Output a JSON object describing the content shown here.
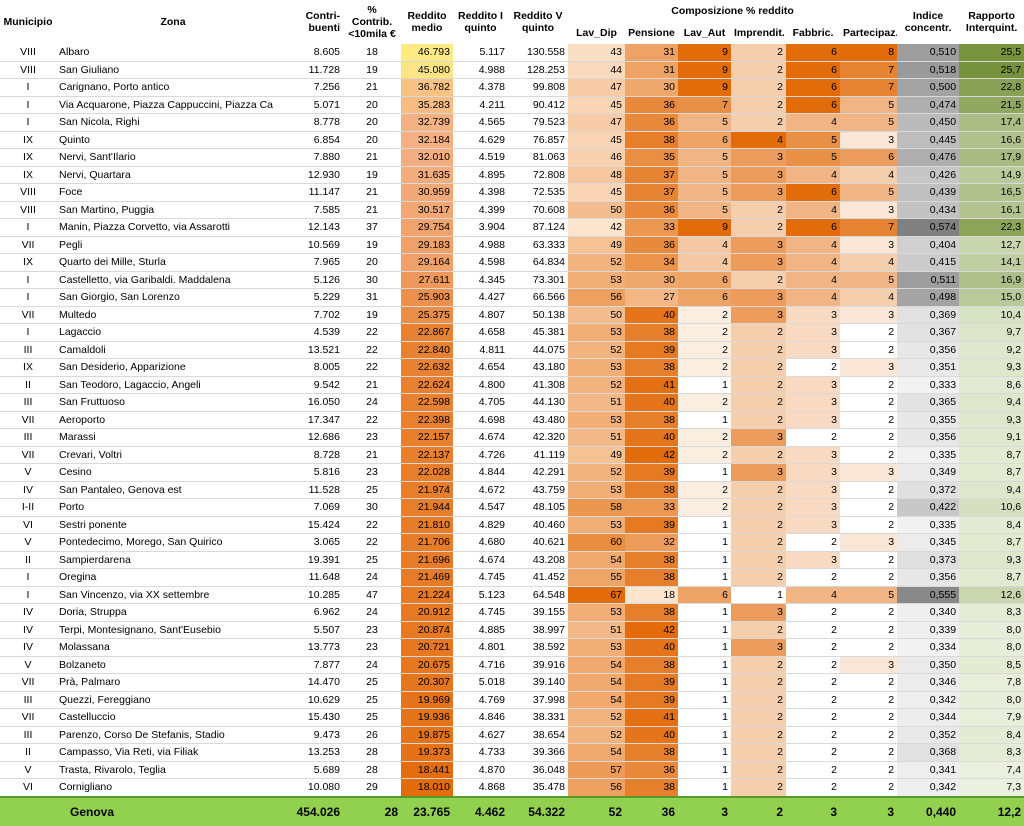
{
  "headers": {
    "municipio": "Municipio",
    "zona": "Zona",
    "contribuenti": "Contri-\nbuenti",
    "contrib10": "% Contrib.\n<10mila €",
    "reddito_medio": "Reddito\nmedio",
    "reddito_I": "Reddito I\nquinto",
    "reddito_V": "Reddito V\nquinto",
    "composizione": "Composizione % reddito",
    "lav_dip": "Lav_Dip",
    "pensione": "Pensione",
    "lav_aut": "Lav_Aut",
    "imprendit": "Imprendit.",
    "fabbric": "Fabbric.",
    "partecipaz": "Partecipaz.",
    "indice": "Indice\nconcentr.",
    "rapporto": "Rapporto\nInterquint."
  },
  "rows": [
    [
      "VIII",
      "Albaro",
      "8.605",
      "18",
      "46.793",
      "5.117",
      "130.558",
      "43",
      "31",
      "9",
      "2",
      "6",
      "8",
      "0,510",
      "25,5"
    ],
    [
      "VIII",
      "San Giuliano",
      "11.728",
      "19",
      "45.080",
      "4.988",
      "128.253",
      "44",
      "31",
      "9",
      "2",
      "6",
      "7",
      "0,518",
      "25,7"
    ],
    [
      "I",
      "Carignano, Porto antico",
      "7.256",
      "21",
      "36.782",
      "4.378",
      "99.808",
      "47",
      "30",
      "9",
      "2",
      "6",
      "7",
      "0,500",
      "22,8"
    ],
    [
      "I",
      "Via Acquarone, Piazza Cappuccini, Piazza Ca",
      "5.071",
      "20",
      "35.283",
      "4.211",
      "90.412",
      "45",
      "36",
      "7",
      "2",
      "6",
      "5",
      "0,474",
      "21,5"
    ],
    [
      "I",
      "San Nicola, Righi",
      "8.778",
      "20",
      "32.739",
      "4.565",
      "79.523",
      "47",
      "36",
      "5",
      "2",
      "4",
      "5",
      "0,450",
      "17,4"
    ],
    [
      "IX",
      "Quinto",
      "6.854",
      "20",
      "32.184",
      "4.629",
      "76.857",
      "45",
      "38",
      "6",
      "4",
      "5",
      "3",
      "0,445",
      "16,6"
    ],
    [
      "IX",
      "Nervi, Sant'Ilario",
      "7.880",
      "21",
      "32.010",
      "4.519",
      "81.063",
      "46",
      "35",
      "5",
      "3",
      "5",
      "6",
      "0,476",
      "17,9"
    ],
    [
      "IX",
      "Nervi, Quartara",
      "12.930",
      "19",
      "31.635",
      "4.895",
      "72.808",
      "48",
      "37",
      "5",
      "3",
      "4",
      "4",
      "0,426",
      "14,9"
    ],
    [
      "VIII",
      "Foce",
      "11.147",
      "21",
      "30.959",
      "4.398",
      "72.535",
      "45",
      "37",
      "5",
      "3",
      "6",
      "5",
      "0,439",
      "16,5"
    ],
    [
      "VIII",
      "San Martino, Puggia",
      "7.585",
      "21",
      "30.517",
      "4.399",
      "70.608",
      "50",
      "36",
      "5",
      "2",
      "4",
      "3",
      "0,434",
      "16,1"
    ],
    [
      "I",
      "Manin, Piazza Corvetto, via Assarotti",
      "12.143",
      "37",
      "29.754",
      "3.904",
      "87.124",
      "42",
      "33",
      "9",
      "2",
      "6",
      "7",
      "0,574",
      "22,3"
    ],
    [
      "VII",
      "Pegli",
      "10.569",
      "19",
      "29.183",
      "4.988",
      "63.333",
      "49",
      "36",
      "4",
      "3",
      "4",
      "3",
      "0,404",
      "12,7"
    ],
    [
      "IX",
      "Quarto dei Mille, Sturla",
      "7.965",
      "20",
      "29.164",
      "4.598",
      "64.834",
      "52",
      "34",
      "4",
      "3",
      "4",
      "4",
      "0,415",
      "14,1"
    ],
    [
      "I",
      "Castelletto, via Garibaldi. Maddalena",
      "5.126",
      "30",
      "27.611",
      "4.345",
      "73.301",
      "53",
      "30",
      "6",
      "2",
      "4",
      "5",
      "0,511",
      "16,9"
    ],
    [
      "I",
      "San Giorgio, San Lorenzo",
      "5.229",
      "31",
      "25.903",
      "4.427",
      "66.566",
      "56",
      "27",
      "6",
      "3",
      "4",
      "4",
      "0,498",
      "15,0"
    ],
    [
      "VII",
      "Multedo",
      "7.702",
      "19",
      "25.375",
      "4.807",
      "50.138",
      "50",
      "40",
      "2",
      "3",
      "3",
      "3",
      "0,369",
      "10,4"
    ],
    [
      "I",
      "Lagaccio",
      "4.539",
      "22",
      "22.867",
      "4.658",
      "45.381",
      "53",
      "38",
      "2",
      "2",
      "3",
      "2",
      "0,367",
      "9,7"
    ],
    [
      "III",
      "Camaldoli",
      "13.521",
      "22",
      "22.840",
      "4.811",
      "44.075",
      "52",
      "39",
      "2",
      "2",
      "3",
      "2",
      "0,356",
      "9,2"
    ],
    [
      "IX",
      "San Desiderio, Apparizione",
      "8.005",
      "22",
      "22.632",
      "4.654",
      "43.180",
      "53",
      "38",
      "2",
      "2",
      "2",
      "3",
      "0,351",
      "9,3"
    ],
    [
      "II",
      "San Teodoro, Lagaccio, Angeli",
      "9.542",
      "21",
      "22.624",
      "4.800",
      "41.308",
      "52",
      "41",
      "1",
      "2",
      "3",
      "2",
      "0,333",
      "8,6"
    ],
    [
      "III",
      "San Fruttuoso",
      "16.050",
      "24",
      "22.598",
      "4.705",
      "44.130",
      "51",
      "40",
      "2",
      "2",
      "3",
      "2",
      "0,365",
      "9,4"
    ],
    [
      "VII",
      "Aeroporto",
      "17.347",
      "22",
      "22.398",
      "4.698",
      "43.480",
      "53",
      "38",
      "1",
      "2",
      "3",
      "2",
      "0,355",
      "9,3"
    ],
    [
      "III",
      "Marassi",
      "12.686",
      "23",
      "22.157",
      "4.674",
      "42.320",
      "51",
      "40",
      "2",
      "3",
      "2",
      "2",
      "0,356",
      "9,1"
    ],
    [
      "VII",
      "Crevari, Voltri",
      "8.728",
      "21",
      "22.137",
      "4.726",
      "41.119",
      "49",
      "42",
      "2",
      "2",
      "3",
      "2",
      "0,335",
      "8,7"
    ],
    [
      "V",
      "Cesino",
      "5.816",
      "23",
      "22.028",
      "4.844",
      "42.291",
      "52",
      "39",
      "1",
      "3",
      "3",
      "3",
      "0,349",
      "8,7"
    ],
    [
      "IV",
      "San Pantaleo, Genova est",
      "11.528",
      "25",
      "21.974",
      "4.672",
      "43.759",
      "53",
      "38",
      "2",
      "2",
      "3",
      "2",
      "0,372",
      "9,4"
    ],
    [
      "I-II",
      "Porto",
      "7.069",
      "30",
      "21.944",
      "4.547",
      "48.105",
      "58",
      "33",
      "2",
      "2",
      "3",
      "2",
      "0,422",
      "10,6"
    ],
    [
      "VI",
      "Sestri ponente",
      "15.424",
      "22",
      "21.810",
      "4.829",
      "40.460",
      "53",
      "39",
      "1",
      "2",
      "3",
      "2",
      "0,335",
      "8,4"
    ],
    [
      "V",
      "Pontedecimo, Morego, San Quirico",
      "3.065",
      "22",
      "21.706",
      "4.680",
      "40.621",
      "60",
      "32",
      "1",
      "2",
      "2",
      "3",
      "0,345",
      "8,7"
    ],
    [
      "II",
      "Sampierdarena",
      "19.391",
      "25",
      "21.696",
      "4.674",
      "43.208",
      "54",
      "38",
      "1",
      "2",
      "3",
      "2",
      "0,373",
      "9,3"
    ],
    [
      "I",
      "Oregina",
      "11.648",
      "24",
      "21.469",
      "4.745",
      "41.452",
      "55",
      "38",
      "1",
      "2",
      "2",
      "2",
      "0,356",
      "8,7"
    ],
    [
      "I",
      "San Vincenzo, via XX settembre",
      "10.285",
      "47",
      "21.224",
      "5.123",
      "64.548",
      "67",
      "18",
      "6",
      "1",
      "4",
      "5",
      "0,555",
      "12,6"
    ],
    [
      "IV",
      "Doria, Struppa",
      "6.962",
      "24",
      "20.912",
      "4.745",
      "39.155",
      "53",
      "38",
      "1",
      "3",
      "2",
      "2",
      "0,340",
      "8,3"
    ],
    [
      "IV",
      "Terpi, Montesignano, Sant'Eusebio",
      "5.507",
      "23",
      "20.874",
      "4.885",
      "38.997",
      "51",
      "42",
      "1",
      "2",
      "2",
      "2",
      "0,339",
      "8,0"
    ],
    [
      "IV",
      "Molassana",
      "13.773",
      "23",
      "20.721",
      "4.801",
      "38.592",
      "53",
      "40",
      "1",
      "3",
      "2",
      "2",
      "0,334",
      "8,0"
    ],
    [
      "V",
      "Bolzaneto",
      "7.877",
      "24",
      "20.675",
      "4.716",
      "39.916",
      "54",
      "38",
      "1",
      "2",
      "2",
      "3",
      "0,350",
      "8,5"
    ],
    [
      "VII",
      "Prà, Palmaro",
      "14.470",
      "25",
      "20.307",
      "5.018",
      "39.140",
      "54",
      "39",
      "1",
      "2",
      "2",
      "2",
      "0,346",
      "7,8"
    ],
    [
      "III",
      "Quezzi, Fereggiano",
      "10.629",
      "25",
      "19.969",
      "4.769",
      "37.998",
      "54",
      "39",
      "1",
      "2",
      "2",
      "2",
      "0,342",
      "8,0"
    ],
    [
      "VII",
      "Castelluccio",
      "15.430",
      "25",
      "19.936",
      "4.846",
      "38.331",
      "52",
      "41",
      "1",
      "2",
      "2",
      "2",
      "0,344",
      "7,9"
    ],
    [
      "III",
      "Parenzo, Corso De Stefanis, Stadio",
      "9.473",
      "26",
      "19.875",
      "4.627",
      "38.654",
      "52",
      "40",
      "1",
      "2",
      "2",
      "2",
      "0,352",
      "8,4"
    ],
    [
      "II",
      "Campasso, Via Reti, via Filiak",
      "13.253",
      "28",
      "19.373",
      "4.733",
      "39.366",
      "54",
      "38",
      "1",
      "2",
      "2",
      "2",
      "0,368",
      "8,3"
    ],
    [
      "V",
      "Trasta, Rivarolo, Teglia",
      "5.689",
      "28",
      "18.441",
      "4.870",
      "36.048",
      "57",
      "36",
      "1",
      "2",
      "2",
      "2",
      "0,341",
      "7,4"
    ],
    [
      "VI",
      "Cornigliano",
      "10.080",
      "29",
      "18.010",
      "4.868",
      "35.478",
      "56",
      "38",
      "1",
      "2",
      "2",
      "2",
      "0,342",
      "7,3"
    ]
  ],
  "total": [
    "",
    "Genova",
    "454.026",
    "28",
    "23.765",
    "4.462",
    "54.322",
    "52",
    "36",
    "3",
    "2",
    "3",
    "3",
    "0,440",
    "12,2"
  ]
}
